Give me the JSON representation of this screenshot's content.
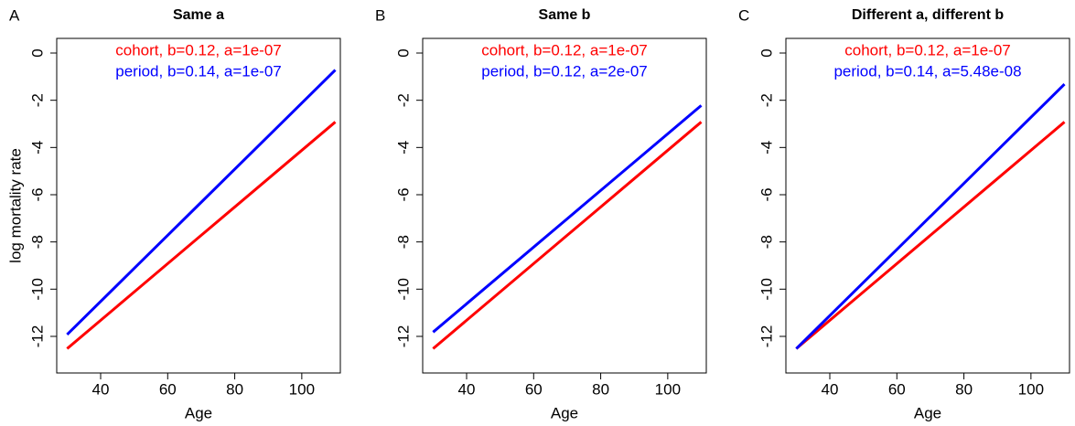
{
  "chart_data": [
    {
      "type": "line",
      "panel_label": "A",
      "title": "Same a",
      "xlabel": "Age",
      "ylabel": "log mortality rate",
      "x": [
        30,
        50,
        70,
        90,
        110
      ],
      "series": [
        {
          "name": "cohort, b=0.12, a=1e-07",
          "color": "#ff0000",
          "values": [
            -12.52,
            -10.12,
            -7.72,
            -5.32,
            -2.92
          ]
        },
        {
          "name": "period, b=0.14, a=1e-07",
          "color": "#0000ff",
          "values": [
            -11.92,
            -9.12,
            -6.32,
            -3.52,
            -0.72
          ]
        }
      ],
      "xlim": [
        26.9,
        111.5
      ],
      "ylim": [
        -13.55,
        0.62
      ],
      "xticks": [
        40,
        60,
        80,
        100
      ],
      "yticks": [
        0,
        -2,
        -4,
        -6,
        -8,
        -10,
        -12
      ]
    },
    {
      "type": "line",
      "panel_label": "B",
      "title": "Same b",
      "xlabel": "Age",
      "x": [
        30,
        50,
        70,
        90,
        110
      ],
      "series": [
        {
          "name": "cohort, b=0.12, a=1e-07",
          "color": "#ff0000",
          "values": [
            -12.52,
            -10.12,
            -7.72,
            -5.32,
            -2.92
          ]
        },
        {
          "name": "period, b=0.12, a=2e-07",
          "color": "#0000ff",
          "values": [
            -11.82,
            -9.42,
            -7.02,
            -4.62,
            -2.22
          ]
        }
      ],
      "xlim": [
        26.9,
        111.5
      ],
      "ylim": [
        -13.55,
        0.62
      ],
      "xticks": [
        40,
        60,
        80,
        100
      ],
      "yticks": [
        0,
        -2,
        -4,
        -6,
        -8,
        -10,
        -12
      ]
    },
    {
      "type": "line",
      "panel_label": "C",
      "title": "Different a, different b",
      "xlabel": "Age",
      "x": [
        30,
        50,
        70,
        90,
        110
      ],
      "series": [
        {
          "name": "cohort, b=0.12, a=1e-07",
          "color": "#ff0000",
          "values": [
            -12.52,
            -10.12,
            -7.72,
            -5.32,
            -2.92
          ]
        },
        {
          "name": "period, b=0.14, a=5.48e-08",
          "color": "#0000ff",
          "values": [
            -12.52,
            -9.72,
            -6.92,
            -4.12,
            -1.32
          ]
        }
      ],
      "xlim": [
        26.9,
        111.5
      ],
      "ylim": [
        -13.55,
        0.62
      ],
      "xticks": [
        40,
        60,
        80,
        100
      ],
      "yticks": [
        0,
        -2,
        -4,
        -6,
        -8,
        -10,
        -12
      ]
    }
  ]
}
